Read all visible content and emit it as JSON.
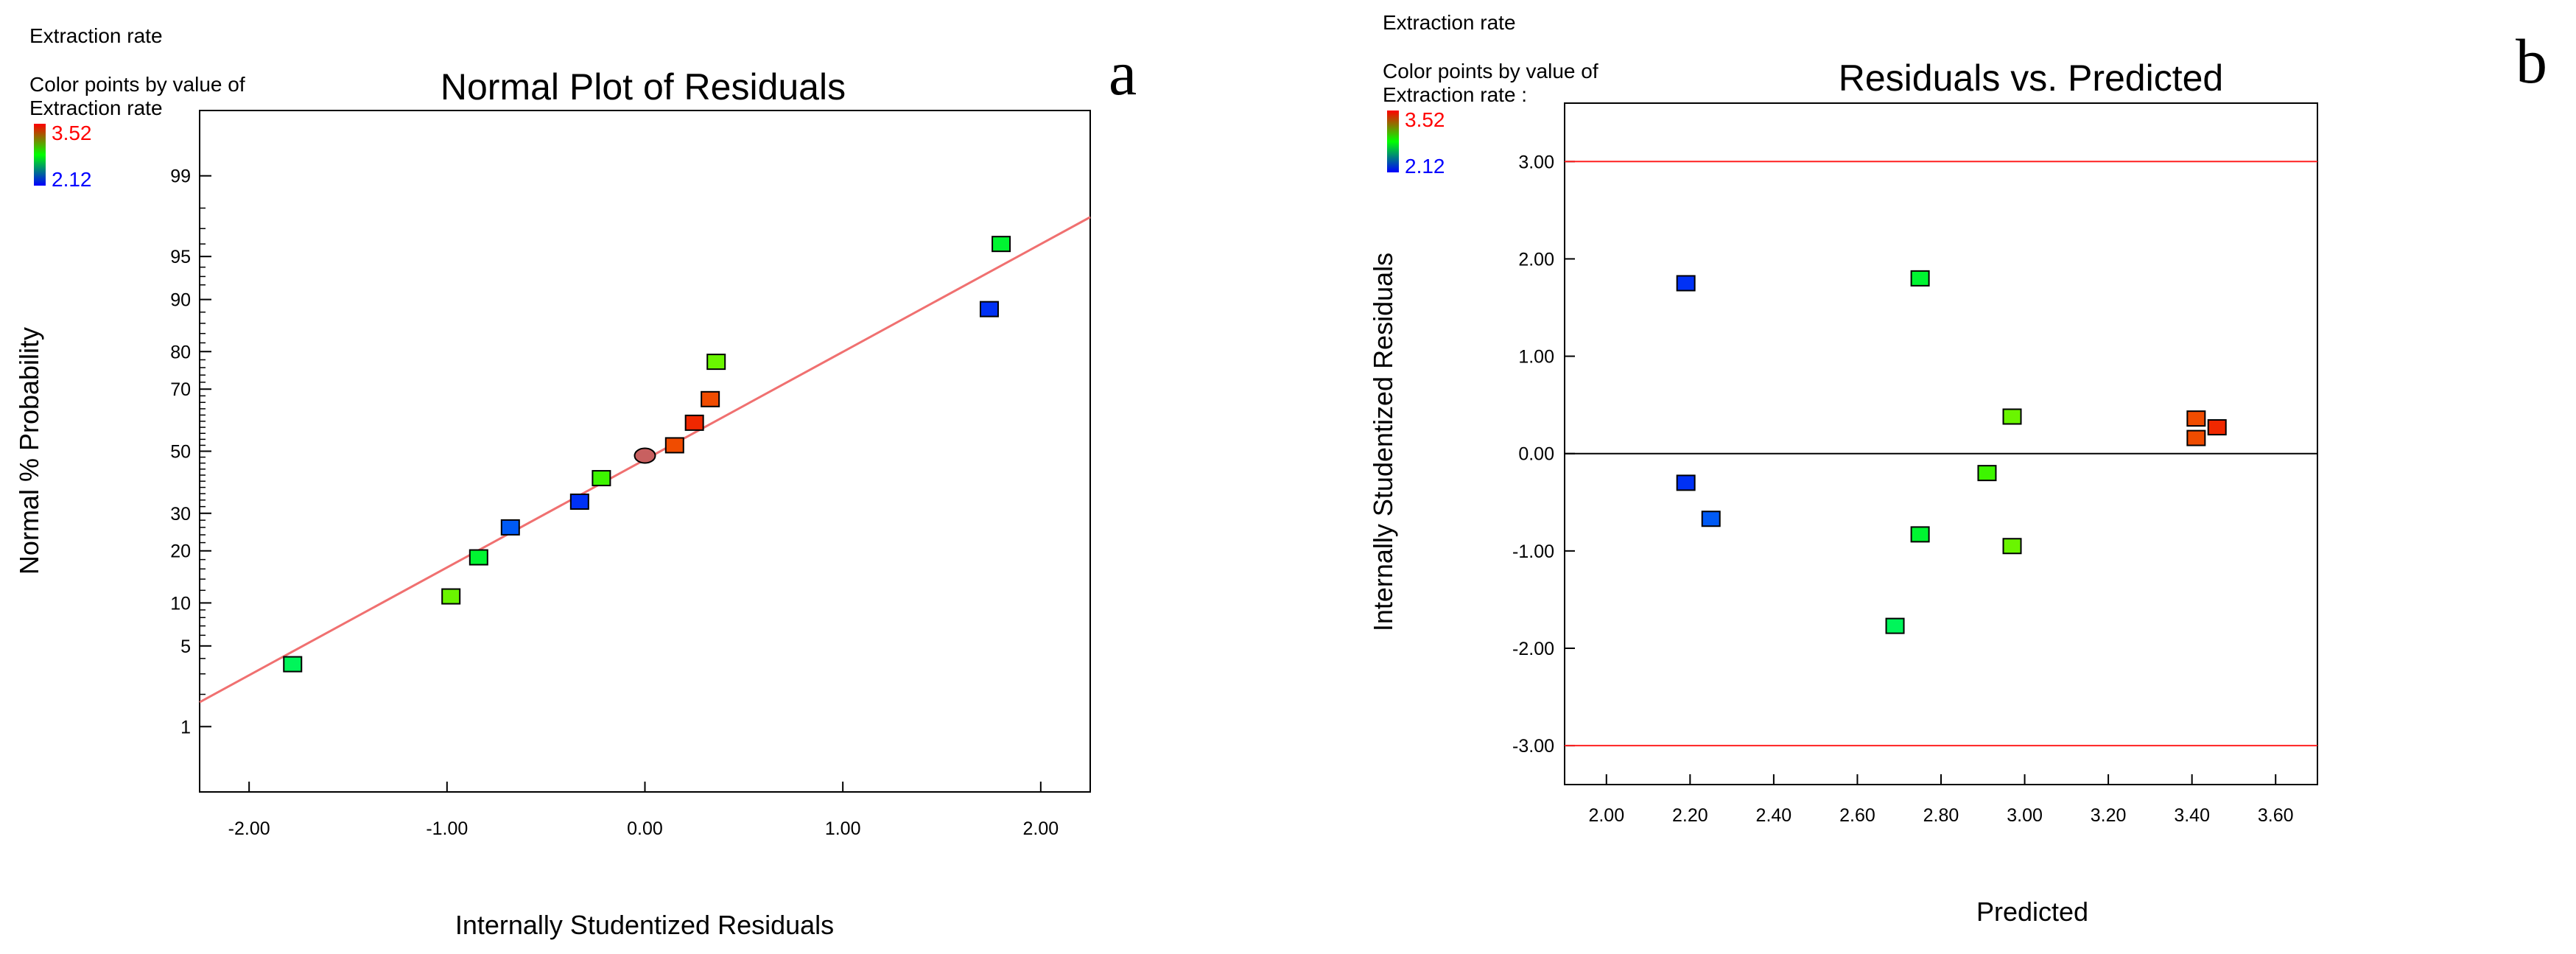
{
  "colors": {
    "high": "#ff0000",
    "mid": "#00ff00",
    "low": "#0000ff",
    "reference_line": "#f07070",
    "limit_line": "#ff2020",
    "zero_line": "#000000"
  },
  "chart_data": [
    {
      "id": "a",
      "type": "scatter",
      "panel_letter": "a",
      "header": "Extraction rate",
      "legend_caption_line1": "Color points by value of",
      "legend_caption_line2": "Extraction rate",
      "legend_max": "3.52",
      "legend_min": "2.12",
      "title": "Normal Plot of Residuals",
      "xlabel": "Internally Studentized Residuals",
      "ylabel": "Normal % Probability",
      "xlim": [
        -2.25,
        2.25
      ],
      "ylim_probability": [
        0.2,
        99.8
      ],
      "x_ticks": [
        {
          "value": -2,
          "label": "-2.00"
        },
        {
          "value": -1,
          "label": "-1.00"
        },
        {
          "value": 0,
          "label": "0.00"
        },
        {
          "value": 1,
          "label": "1.00"
        },
        {
          "value": 2,
          "label": "2.00"
        }
      ],
      "y_ticks": [
        {
          "value": 1,
          "label": "1"
        },
        {
          "value": 5,
          "label": "5"
        },
        {
          "value": 10,
          "label": "10"
        },
        {
          "value": 20,
          "label": "20"
        },
        {
          "value": 30,
          "label": "30"
        },
        {
          "value": 50,
          "label": "50"
        },
        {
          "value": 70,
          "label": "70"
        },
        {
          "value": 80,
          "label": "80"
        },
        {
          "value": 90,
          "label": "90"
        },
        {
          "value": 95,
          "label": "95"
        },
        {
          "value": 99,
          "label": "99"
        }
      ],
      "y_minor_ticks": [
        2,
        3,
        4,
        6,
        7,
        8,
        9,
        12,
        14,
        16,
        18,
        22,
        24,
        26,
        28,
        32,
        34,
        36,
        38,
        40,
        42,
        44,
        46,
        48,
        52,
        54,
        56,
        58,
        60,
        62,
        64,
        66,
        68,
        72,
        74,
        76,
        78,
        82,
        84,
        86,
        88,
        92,
        93,
        94,
        96,
        97,
        98
      ],
      "reference_line": {
        "x": [
          -2.25,
          2.25
        ],
        "prob": [
          1.7,
          97.6
        ]
      },
      "points": [
        {
          "x": -1.78,
          "prob": 3.6,
          "value": 2.69,
          "shape": "square"
        },
        {
          "x": -0.98,
          "prob": 11.0,
          "value": 2.97,
          "shape": "square"
        },
        {
          "x": -0.84,
          "prob": 18.5,
          "value": 2.75,
          "shape": "square"
        },
        {
          "x": -0.68,
          "prob": 26.0,
          "value": 2.25,
          "shape": "square"
        },
        {
          "x": -0.33,
          "prob": 33.5,
          "value": 2.19,
          "shape": "square"
        },
        {
          "x": -0.22,
          "prob": 41.0,
          "value": 2.91,
          "shape": "square"
        },
        {
          "x": 0.0,
          "prob": 48.5,
          "value": 3.3,
          "shape": "ellipse"
        },
        {
          "x": 0.15,
          "prob": 52.0,
          "value": 3.41,
          "shape": "square"
        },
        {
          "x": 0.25,
          "prob": 59.5,
          "value": 3.46,
          "shape": "square"
        },
        {
          "x": 0.33,
          "prob": 67.0,
          "value": 3.41,
          "shape": "square"
        },
        {
          "x": 0.36,
          "prob": 77.5,
          "value": 2.97,
          "shape": "square"
        },
        {
          "x": 1.74,
          "prob": 88.5,
          "value": 2.19,
          "shape": "square"
        },
        {
          "x": 1.8,
          "prob": 96.0,
          "value": 2.75,
          "shape": "square"
        }
      ]
    },
    {
      "id": "b",
      "type": "scatter",
      "panel_letter": "b",
      "header": "Extraction rate",
      "legend_caption_line1": "Color points by value of",
      "legend_caption_line2": "Extraction rate :",
      "legend_max": "3.52",
      "legend_min": "2.12",
      "title": "Residuals vs. Predicted",
      "xlabel": "Predicted",
      "ylabel": "Internally Studentized Residuals",
      "xlim": [
        1.9,
        3.7
      ],
      "ylim": [
        -3.4,
        3.6
      ],
      "x_ticks": [
        {
          "value": 2.0,
          "label": "2.00"
        },
        {
          "value": 2.2,
          "label": "2.20"
        },
        {
          "value": 2.4,
          "label": "2.40"
        },
        {
          "value": 2.6,
          "label": "2.60"
        },
        {
          "value": 2.8,
          "label": "2.80"
        },
        {
          "value": 3.0,
          "label": "3.00"
        },
        {
          "value": 3.2,
          "label": "3.20"
        },
        {
          "value": 3.4,
          "label": "3.40"
        },
        {
          "value": 3.6,
          "label": "3.60"
        }
      ],
      "y_ticks": [
        {
          "value": 3,
          "label": "3.00"
        },
        {
          "value": 2,
          "label": "2.00"
        },
        {
          "value": 1,
          "label": "1.00"
        },
        {
          "value": 0,
          "label": "0.00"
        },
        {
          "value": -1,
          "label": "-1.00"
        },
        {
          "value": -2,
          "label": "-2.00"
        },
        {
          "value": -3,
          "label": "-3.00"
        }
      ],
      "limit_lines": [
        3.0,
        -3.0
      ],
      "zero_line": 0,
      "points": [
        {
          "x": 2.19,
          "y": 1.75,
          "value": 2.19
        },
        {
          "x": 2.19,
          "y": -0.3,
          "value": 2.19
        },
        {
          "x": 2.25,
          "y": -0.67,
          "value": 2.25
        },
        {
          "x": 2.69,
          "y": -1.77,
          "value": 2.69
        },
        {
          "x": 2.75,
          "y": 1.8,
          "value": 2.75
        },
        {
          "x": 2.75,
          "y": -0.83,
          "value": 2.75
        },
        {
          "x": 2.91,
          "y": -0.2,
          "value": 2.91
        },
        {
          "x": 2.97,
          "y": 0.38,
          "value": 2.97
        },
        {
          "x": 2.97,
          "y": -0.95,
          "value": 2.97
        },
        {
          "x": 3.41,
          "y": 0.36,
          "value": 3.41
        },
        {
          "x": 3.41,
          "y": 0.16,
          "value": 3.41
        },
        {
          "x": 3.46,
          "y": 0.27,
          "value": 3.46
        }
      ]
    }
  ]
}
